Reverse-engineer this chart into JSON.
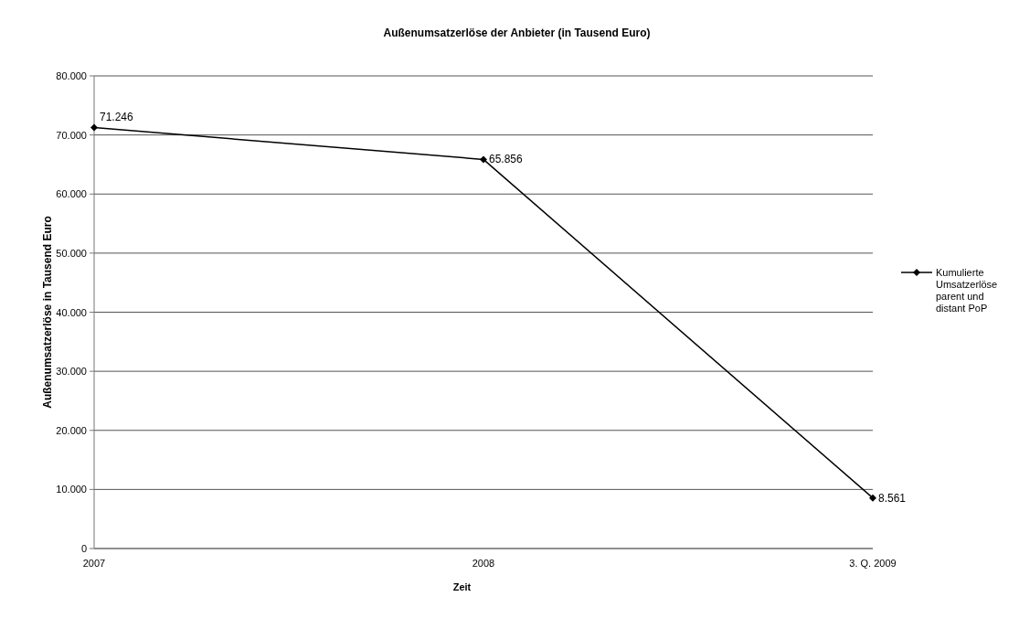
{
  "chart_data": {
    "type": "line",
    "title": "Außenumsatzerlöse der Anbieter (in Tausend Euro)",
    "xlabel": "Zeit",
    "ylabel": "Außenumsatzerlöse in Tausend Euro",
    "categories": [
      "2007",
      "2008",
      "3. Q. 2009"
    ],
    "series": [
      {
        "name": "Kumulierte Umsatzerlöse parent und distant PoP",
        "color": "#000000",
        "values": [
          71246,
          65856,
          8561
        ],
        "value_labels": [
          "71.246",
          "65.856",
          "8.561"
        ]
      }
    ],
    "ylim": [
      0,
      80000
    ],
    "yticks": [
      {
        "value": 0,
        "label": "0"
      },
      {
        "value": 10000,
        "label": "10.000"
      },
      {
        "value": 20000,
        "label": "20.000"
      },
      {
        "value": 30000,
        "label": "30.000"
      },
      {
        "value": 40000,
        "label": "40.000"
      },
      {
        "value": 50000,
        "label": "50.000"
      },
      {
        "value": 60000,
        "label": "60.000"
      },
      {
        "value": 70000,
        "label": "70.000"
      },
      {
        "value": 80000,
        "label": "80.000"
      }
    ],
    "grid": "y",
    "legend": "right",
    "marker": "diamond",
    "line_style": "solid"
  }
}
